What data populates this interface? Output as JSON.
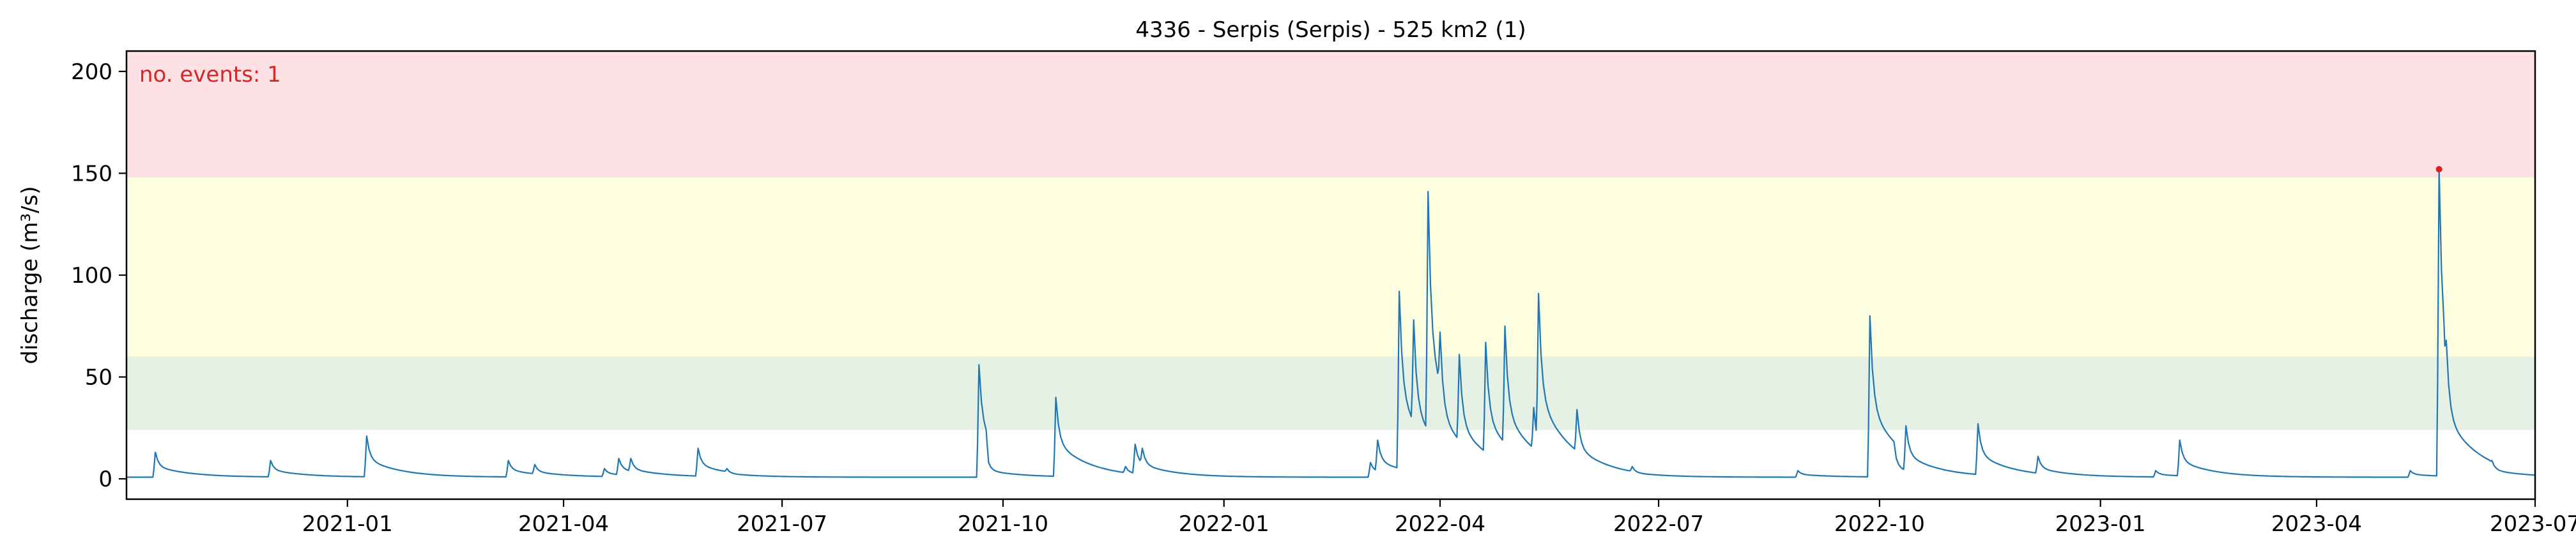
{
  "chart_data": {
    "type": "line",
    "title": "4336 - Serpis (Serpis) - 525 km2 (1)",
    "xlabel": "",
    "ylabel": "discharge (m³/s)",
    "x_range": [
      "2020-10-01",
      "2023-07-01"
    ],
    "ylim": [
      -10,
      210
    ],
    "x_ticks": [
      "2021-01",
      "2021-04",
      "2021-07",
      "2021-10",
      "2022-01",
      "2022-04",
      "2022-07",
      "2022-10",
      "2023-01",
      "2023-04",
      "2023-07"
    ],
    "y_ticks": [
      0,
      50,
      100,
      150,
      200
    ],
    "grid": false,
    "bands": [
      {
        "from": 24,
        "to": 60,
        "color": "#e4f1e4"
      },
      {
        "from": 60,
        "to": 148,
        "color": "#fefee1"
      },
      {
        "from": 148,
        "to": 210,
        "color": "#fde1e4"
      }
    ],
    "line_color": "#1f77b4",
    "event_color": "#e41a1c",
    "annotation": {
      "text": "no. events: 1",
      "color": "#d62728",
      "position": "top-left"
    },
    "events": [
      {
        "x": "2023-05-22",
        "y": 152
      }
    ],
    "series": [
      {
        "peaks": [
          {
            "x": "2020-10-13",
            "y": 13
          },
          {
            "x": "2020-11-30",
            "y": 9
          },
          {
            "x": "2021-01-09",
            "y": 21
          },
          {
            "x": "2021-03-09",
            "y": 9
          },
          {
            "x": "2021-03-20",
            "y": 7
          },
          {
            "x": "2021-04-18",
            "y": 5
          },
          {
            "x": "2021-04-24",
            "y": 10
          },
          {
            "x": "2021-04-29",
            "y": 10
          },
          {
            "x": "2021-05-27",
            "y": 15
          },
          {
            "x": "2021-06-08",
            "y": 5
          },
          {
            "x": "2021-09-21",
            "y": 56
          },
          {
            "x": "2021-09-25",
            "y": 8
          },
          {
            "x": "2021-10-23",
            "y": 40
          },
          {
            "x": "2021-11-21",
            "y": 6
          },
          {
            "x": "2021-11-25",
            "y": 17
          },
          {
            "x": "2021-11-28",
            "y": 15
          },
          {
            "x": "2022-03-03",
            "y": 8
          },
          {
            "x": "2022-03-06",
            "y": 19
          },
          {
            "x": "2022-03-15",
            "y": 92
          },
          {
            "x": "2022-03-21",
            "y": 78
          },
          {
            "x": "2022-03-27",
            "y": 141
          },
          {
            "x": "2022-04-01",
            "y": 72
          },
          {
            "x": "2022-04-09",
            "y": 61
          },
          {
            "x": "2022-04-20",
            "y": 67
          },
          {
            "x": "2022-04-28",
            "y": 75
          },
          {
            "x": "2022-05-10",
            "y": 35
          },
          {
            "x": "2022-05-12",
            "y": 91
          },
          {
            "x": "2022-05-28",
            "y": 34
          },
          {
            "x": "2022-06-20",
            "y": 6
          },
          {
            "x": "2022-08-28",
            "y": 4
          },
          {
            "x": "2022-09-27",
            "y": 80
          },
          {
            "x": "2022-10-08",
            "y": 10
          },
          {
            "x": "2022-10-12",
            "y": 26
          },
          {
            "x": "2022-11-11",
            "y": 27
          },
          {
            "x": "2022-12-06",
            "y": 11
          },
          {
            "x": "2023-01-24",
            "y": 4
          },
          {
            "x": "2023-02-03",
            "y": 19
          },
          {
            "x": "2023-05-10",
            "y": 4
          },
          {
            "x": "2023-05-22",
            "y": 152
          },
          {
            "x": "2023-05-25",
            "y": 68
          },
          {
            "x": "2023-06-13",
            "y": 9
          }
        ]
      }
    ]
  }
}
